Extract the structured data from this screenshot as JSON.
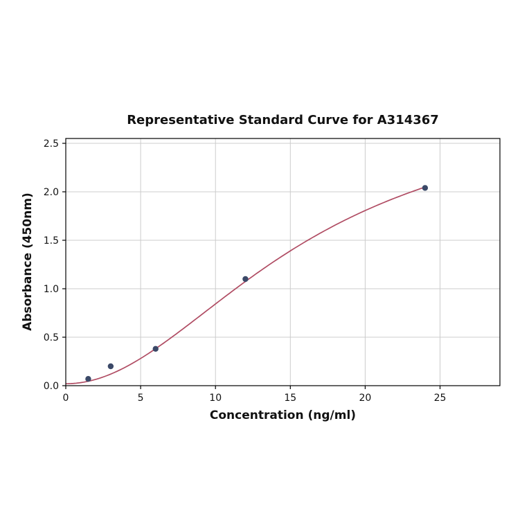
{
  "chart_data": {
    "type": "scatter",
    "title": "Representative Standard Curve for A314367",
    "xlabel": "Concentration (ng/ml)",
    "ylabel": "Absorbance (450nm)",
    "xlim": [
      0,
      29
    ],
    "ylim": [
      0,
      2.55
    ],
    "xticks": [
      0,
      5,
      10,
      15,
      20,
      25
    ],
    "xtick_labels": [
      "0",
      "5",
      "10",
      "15",
      "20",
      "25"
    ],
    "yticks": [
      0,
      0.5,
      1.0,
      1.5,
      2.0,
      2.5
    ],
    "ytick_labels": [
      "0.0",
      "0.5",
      "1.0",
      "1.5",
      "2.0",
      "2.5"
    ],
    "grid": true,
    "legend": "none",
    "points": {
      "x": [
        1.5,
        3,
        6,
        12,
        24
      ],
      "y": [
        0.07,
        0.2,
        0.38,
        1.1,
        2.04
      ]
    },
    "fit_curve": {
      "type": "4pl",
      "a": 0.02,
      "d": 2.95,
      "c": 16,
      "b": 2.0,
      "x_range": [
        0,
        24
      ]
    },
    "colors": {
      "marker": "#3b4968",
      "line": "#b04c63",
      "grid": "#cccccc",
      "axis": "#000000",
      "background": "#ffffff"
    }
  }
}
